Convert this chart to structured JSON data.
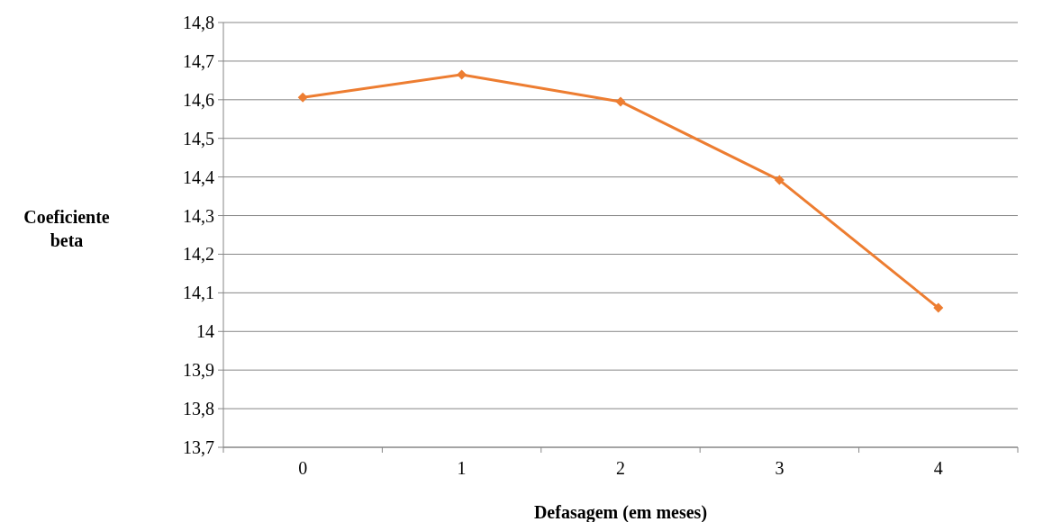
{
  "chart_data": {
    "type": "line",
    "xlabel": "Defasagem (em meses)",
    "ylabel": "Coeficiente beta",
    "categories": [
      "0",
      "1",
      "2",
      "3",
      "4"
    ],
    "series": [
      {
        "color": "#ed7d31",
        "values": [
          14.606,
          14.665,
          14.595,
          14.392,
          14.061
        ]
      }
    ],
    "ylim": [
      13.7,
      14.8
    ],
    "yticks": [
      {
        "value": 13.7,
        "label": "13,7"
      },
      {
        "value": 13.8,
        "label": "13,8"
      },
      {
        "value": 13.9,
        "label": "13,9"
      },
      {
        "value": 14,
        "label": "14"
      },
      {
        "value": 14.1,
        "label": "14,1"
      },
      {
        "value": 14.2,
        "label": "14,2"
      },
      {
        "value": 14.3,
        "label": "14,3"
      },
      {
        "value": 14.4,
        "label": "14,4"
      },
      {
        "value": 14.5,
        "label": "14,5"
      },
      {
        "value": 14.6,
        "label": "14,6"
      },
      {
        "value": 14.7,
        "label": "14,7"
      },
      {
        "value": 14.8,
        "label": "14,8"
      }
    ],
    "grid": "y",
    "marker": "diamond",
    "line_style": "solid"
  }
}
